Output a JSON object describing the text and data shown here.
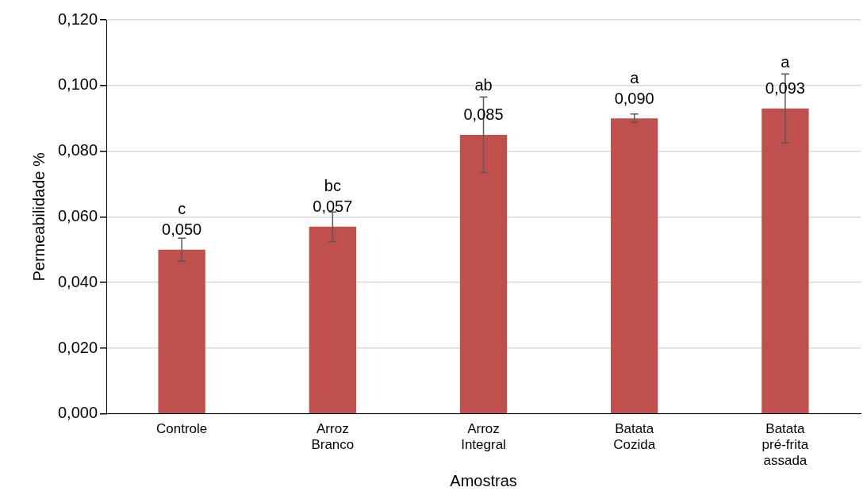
{
  "chart_data": {
    "type": "bar",
    "xlabel": "Amostras",
    "ylabel": "Permeabilidade %",
    "categories": [
      "Controle",
      "Arroz Branco",
      "Arroz Integral",
      "Batata Cozida",
      "Batata pré-frita assada"
    ],
    "values": [
      0.05,
      0.057,
      0.085,
      0.09,
      0.093
    ],
    "errors": [
      0.0035,
      0.0045,
      0.0115,
      0.0013,
      0.0105
    ],
    "value_labels": [
      "0,050",
      "0,057",
      "0,085",
      "0,090",
      "0,093"
    ],
    "color": "#c0504d",
    "ylim": [
      0,
      0.12
    ],
    "yticks": [
      {
        "value": 0,
        "label": "0,000"
      },
      {
        "value": 0.02,
        "label": "0,020"
      },
      {
        "value": 0.04,
        "label": "0,040"
      },
      {
        "value": 0.06,
        "label": "0,060"
      },
      {
        "value": 0.08,
        "label": "0,080"
      },
      {
        "value": 0.1,
        "label": "0,100"
      },
      {
        "value": 0.12,
        "label": "0,120"
      }
    ],
    "grid": "y",
    "legend": false,
    "annotations": [
      "c",
      "bc",
      "ab",
      "a",
      "a"
    ]
  }
}
